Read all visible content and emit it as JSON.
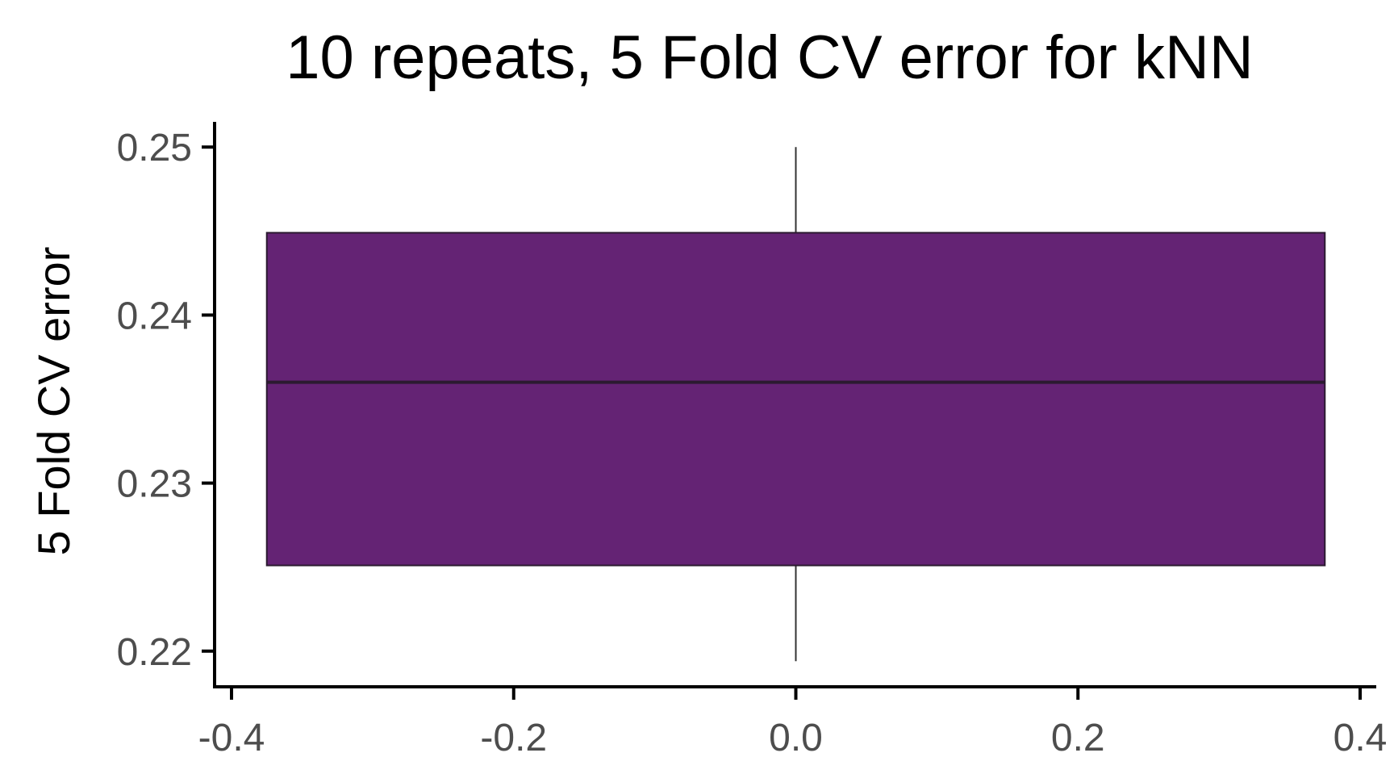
{
  "chart_data": {
    "type": "box",
    "title": "10 repeats, 5 Fold CV error for kNN",
    "xlabel": "",
    "ylabel": "5 Fold CV error",
    "xlim": [
      -0.4,
      0.4
    ],
    "ylim": [
      0.2185,
      0.2515
    ],
    "x_ticks": [
      -0.4,
      -0.2,
      0.0,
      0.2,
      0.4
    ],
    "x_tick_labels": [
      "-0.4",
      "-0.2",
      "0.0",
      "0.2",
      "0.4"
    ],
    "y_ticks": [
      0.22,
      0.23,
      0.24,
      0.25
    ],
    "y_tick_labels": [
      "0.22",
      "0.23",
      "0.24",
      "0.25"
    ],
    "grid": false,
    "legend": "none",
    "box": {
      "x_center": 0.0,
      "x_left": -0.375,
      "x_right": 0.375,
      "whisker_low": 0.2194,
      "q1": 0.2251,
      "median": 0.236,
      "q3": 0.2449,
      "whisker_high": 0.25
    },
    "colors": {
      "box_fill": "#642374",
      "box_stroke": "#2b1a30",
      "axis": "#000000",
      "tick_label": "#4d4d4d"
    }
  }
}
